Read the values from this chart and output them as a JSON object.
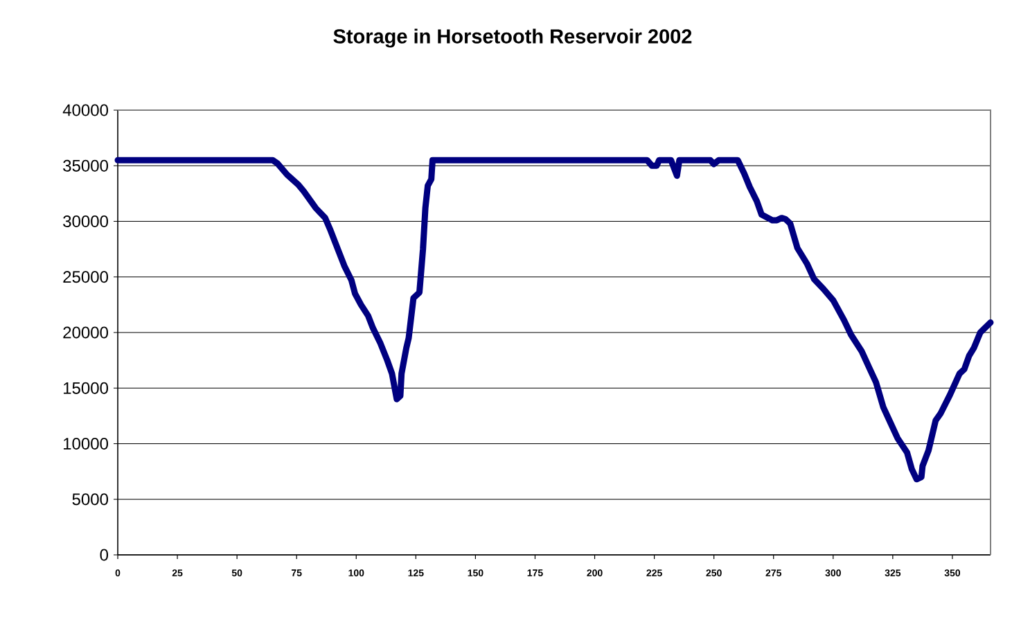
{
  "chart_data": {
    "type": "line",
    "title": "Storage in Horsetooth Reservoir 2002",
    "x": [
      0,
      65,
      67,
      69,
      71,
      75.7,
      78,
      80,
      83,
      87,
      89,
      91,
      93,
      95,
      98,
      99.5,
      102,
      105,
      107,
      110,
      113,
      115,
      117,
      118.5,
      119,
      121,
      122,
      124,
      126.5,
      128,
      129,
      130,
      131.5,
      132,
      222,
      224,
      226,
      227,
      232,
      234.5,
      235.5,
      248.5,
      250,
      252,
      260,
      262.7,
      265,
      268,
      270,
      274.5,
      276.4,
      278.4,
      280,
      282,
      285,
      289,
      292,
      296,
      300,
      304.6,
      307.5,
      312,
      315,
      318,
      321,
      324,
      327,
      331,
      333,
      335,
      337,
      337.5,
      340,
      343,
      345,
      349,
      353,
      355,
      357,
      359,
      361.7,
      366
    ],
    "values": [
      35500,
      35500,
      35200,
      34700,
      34200,
      33300,
      32700,
      32100,
      31200,
      30300,
      29300,
      28200,
      27100,
      26000,
      24700,
      23500,
      22500,
      21500,
      20400,
      19100,
      17500,
      16300,
      14000,
      14300,
      16300,
      18600,
      19500,
      23100,
      23600,
      27500,
      31200,
      33200,
      33800,
      35500,
      35500,
      35000,
      35000,
      35500,
      35500,
      34100,
      35500,
      35500,
      35150,
      35500,
      35500,
      34300,
      33100,
      31800,
      30600,
      30100,
      30100,
      30300,
      30200,
      29800,
      27600,
      26200,
      24800,
      23900,
      22900,
      21100,
      19800,
      18300,
      16900,
      15500,
      13300,
      11900,
      10500,
      9200,
      7700,
      6800,
      7000,
      8000,
      9400,
      12100,
      12700,
      14400,
      16300,
      16700,
      17900,
      18600,
      20000,
      20900
    ],
    "color": "#000080",
    "line_style": "solid",
    "marker": "none",
    "grid": "y",
    "xlim": [
      0,
      366
    ],
    "ylim": [
      0,
      40000
    ],
    "xticks": [
      0,
      25,
      50,
      75,
      100,
      125,
      150,
      175,
      200,
      225,
      250,
      275,
      300,
      325,
      350
    ],
    "yticks": [
      0,
      5000,
      10000,
      15000,
      20000,
      25000,
      30000,
      35000,
      40000
    ]
  }
}
